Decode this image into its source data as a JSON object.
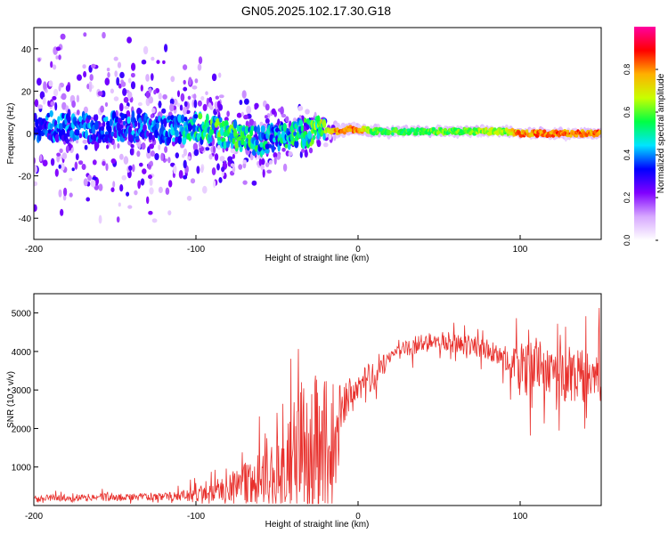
{
  "title": "GN05.2025.102.17.30.G18",
  "chart_data": [
    {
      "type": "heatmap",
      "xlabel": "Height of straight line (km)",
      "ylabel": "Frequency (Hz)",
      "xlim": [
        -200,
        150
      ],
      "ylim": [
        -50,
        50
      ],
      "xticks": [
        -200,
        -100,
        0,
        100
      ],
      "yticks": [
        -40,
        -20,
        0,
        20,
        40
      ],
      "grid": false,
      "colorbar": {
        "label": "Normalized spectral amplitude",
        "range": [
          0.0,
          1.0
        ],
        "ticks": [
          "0.0",
          "0.2",
          "0.4",
          "0.6",
          "0.8"
        ],
        "colors": [
          "#ffffff",
          "#d7a8ff",
          "#8000ff",
          "#0000ff",
          "#00e5ff",
          "#00ff44",
          "#c8ff00",
          "#ffb000",
          "#ff0000",
          "#ff00a0"
        ]
      },
      "ridge": {
        "x": [
          -200,
          -190,
          -180,
          -170,
          -160,
          -150,
          -140,
          -130,
          -120,
          -110,
          -100,
          -90,
          -80,
          -70,
          -60,
          -55,
          -50,
          -45,
          -40,
          -35,
          -30,
          -25,
          -20,
          -15,
          -10,
          -5,
          0,
          10,
          20,
          30,
          40,
          50,
          60,
          70,
          80,
          90,
          100,
          110,
          120,
          130,
          140,
          150
        ],
        "y": [
          3,
          4,
          2,
          3,
          2,
          3,
          3,
          2,
          2,
          2,
          3,
          2,
          0,
          -2,
          -4,
          -2,
          -3,
          -2,
          0,
          1,
          0,
          3,
          1,
          1,
          1,
          2,
          2,
          1,
          1,
          1,
          1,
          1,
          1,
          1,
          1,
          1,
          0,
          0,
          0,
          0,
          0,
          0
        ],
        "amplitude": [
          0.35,
          0.4,
          0.42,
          0.4,
          0.42,
          0.4,
          0.42,
          0.4,
          0.42,
          0.45,
          0.55,
          0.6,
          0.6,
          0.55,
          0.55,
          0.5,
          0.5,
          0.55,
          0.55,
          0.55,
          0.6,
          0.65,
          0.7,
          0.8,
          0.85,
          0.85,
          0.85,
          0.6,
          0.6,
          0.6,
          0.62,
          0.62,
          0.62,
          0.62,
          0.7,
          0.65,
          0.85,
          0.85,
          0.85,
          0.85,
          0.85,
          0.85
        ]
      },
      "spread_hz": {
        "x": [
          -200,
          -150,
          -100,
          -75,
          -50,
          -25,
          -10,
          0,
          150
        ],
        "y": [
          50,
          50,
          40,
          25,
          20,
          10,
          3,
          2,
          2
        ]
      }
    },
    {
      "type": "line",
      "xlabel": "Height of straight line (km)",
      "ylabel": "SNR (10 * v/v)",
      "xlim": [
        -200,
        150
      ],
      "ylim": [
        0,
        5500
      ],
      "xticks": [
        -200,
        -100,
        0,
        100
      ],
      "yticks": [
        1000,
        2000,
        3000,
        4000,
        5000
      ],
      "grid": false,
      "series": [
        {
          "color": "#e8302c",
          "x": [
            -200,
            -180,
            -160,
            -140,
            -120,
            -110,
            -100,
            -90,
            -80,
            -70,
            -60,
            -50,
            -45,
            -40,
            -35,
            -30,
            -25,
            -20,
            -15,
            -10,
            -5,
            0,
            5,
            10,
            15,
            20,
            25,
            30,
            40,
            50,
            60,
            70,
            80,
            90,
            100,
            110,
            120,
            130,
            140,
            150
          ],
          "y": [
            180,
            200,
            210,
            220,
            230,
            250,
            300,
            350,
            450,
            600,
            750,
            900,
            1000,
            1200,
            1400,
            1500,
            1550,
            1650,
            1800,
            2600,
            2900,
            3000,
            3200,
            3400,
            3700,
            3900,
            4050,
            4150,
            4200,
            4250,
            4250,
            4150,
            4050,
            3850,
            3500,
            3550,
            3400,
            3350,
            3350,
            3400
          ],
          "noise_pct": [
            60,
            60,
            60,
            55,
            55,
            70,
            80,
            90,
            100,
            110,
            120,
            130,
            150,
            160,
            170,
            175,
            160,
            140,
            125,
            35,
            25,
            20,
            18,
            15,
            12,
            8,
            8,
            8,
            8,
            8,
            8,
            8,
            8,
            10,
            25,
            30,
            25,
            25,
            28,
            30
          ]
        }
      ]
    }
  ]
}
